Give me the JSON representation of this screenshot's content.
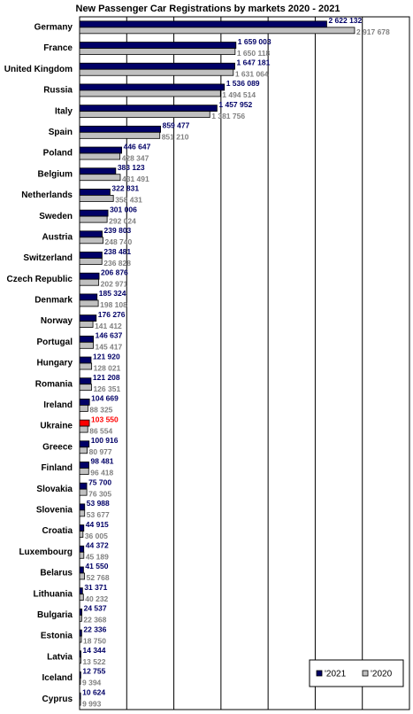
{
  "chart_data": {
    "type": "bar",
    "orientation": "horizontal",
    "title": "New Passenger Car Registrations by markets 2020 - 2021",
    "categories": [
      "Germany",
      "France",
      "United Kingdom",
      "Russia",
      "Italy",
      "Spain",
      "Poland",
      "Belgium",
      "Netherlands",
      "Sweden",
      "Austria",
      "Switzerland",
      "Czech Republic",
      "Denmark",
      "Norway",
      "Portugal",
      "Hungary",
      "Romania",
      "Ireland",
      "Ukraine",
      "Greece",
      "Finland",
      "Slovakia",
      "Slovenia",
      "Croatia",
      "Luxembourg",
      "Belarus",
      "Lithuania",
      "Bulgaria",
      "Estonia",
      "Latvia",
      "Iceland",
      "Cyprus"
    ],
    "series": [
      {
        "name": "'2021",
        "color": "#000066",
        "label_color": "#000066",
        "highlight": {
          "index": 19,
          "color": "#ff0000"
        },
        "values": [
          2622132,
          1659003,
          1647181,
          1536089,
          1457952,
          859477,
          446647,
          383123,
          322831,
          301006,
          239803,
          238481,
          206876,
          185324,
          176276,
          146637,
          121920,
          121208,
          104669,
          103550,
          100916,
          98481,
          75700,
          53988,
          44915,
          44372,
          41550,
          31371,
          24537,
          22336,
          14344,
          12755,
          10624
        ],
        "value_labels": [
          "2 622 132",
          "1 659 003",
          "1 647 181",
          "1 536 089",
          "1 457 952",
          "859 477",
          "446 647",
          "383 123",
          "322 831",
          "301 006",
          "239 803",
          "238 481",
          "206 876",
          "185 324",
          "176 276",
          "146 637",
          "121 920",
          "121 208",
          "104 669",
          "103 550",
          "100 916",
          "98 481",
          "75 700",
          "53 988",
          "44 915",
          "44 372",
          "41 550",
          "31 371",
          "24 537",
          "22 336",
          "14 344",
          "12 755",
          "10 624"
        ]
      },
      {
        "name": "'2020",
        "color": "#c0c0c0",
        "label_color": "#808080",
        "values": [
          2917678,
          1650118,
          1631064,
          1494514,
          1381756,
          851210,
          428347,
          431491,
          358431,
          292024,
          248740,
          236828,
          202971,
          198108,
          141412,
          145417,
          128021,
          126351,
          88325,
          86554,
          80977,
          96418,
          76305,
          53677,
          36005,
          45189,
          52768,
          40232,
          22368,
          18750,
          13522,
          9394,
          9993
        ],
        "value_labels": [
          "2 917 678",
          "1 650 118",
          "1 631 064",
          "1 494 514",
          "1 381 756",
          "851 210",
          "428 347",
          "431 491",
          "358 431",
          "292 024",
          "248 740",
          "236 828",
          "202 971",
          "198 108",
          "141 412",
          "145 417",
          "128 021",
          "126 351",
          "88 325",
          "86 554",
          "80 977",
          "96 418",
          "76 305",
          "53 677",
          "36 005",
          "45 189",
          "52 768",
          "40 232",
          "22 368",
          "18 750",
          "13 522",
          "9 394",
          "9 993"
        ]
      }
    ],
    "xlim": [
      0,
      3500000
    ],
    "xticks": [
      0,
      500000,
      1000000,
      1500000,
      2000000,
      2500000,
      3000000,
      3500000
    ],
    "grid": true,
    "legend": "bottom-right"
  }
}
